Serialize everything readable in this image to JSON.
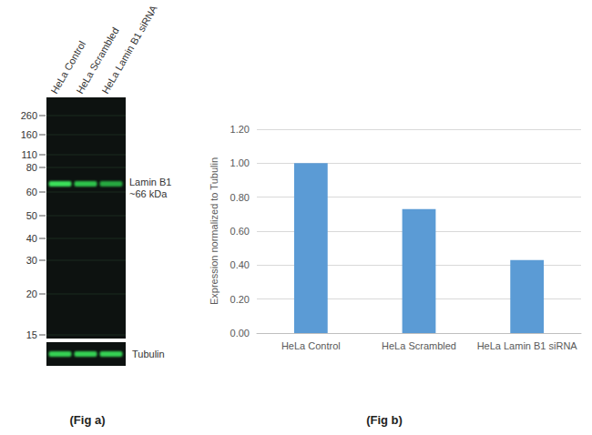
{
  "blot": {
    "caption": "(Fig a)",
    "lanes": [
      "HeLa Control",
      "HeLa Scrambled",
      "HeLa Lamin B1 siRNA"
    ],
    "markers": [
      260,
      160,
      110,
      80,
      60,
      50,
      40,
      30,
      20,
      15
    ],
    "bands": [
      {
        "label": "Lamin B1",
        "size": 66,
        "size_label": "~66 kDa"
      },
      {
        "label": "Tubulin"
      }
    ]
  },
  "chart_data": {
    "type": "bar",
    "caption": "(Fig b)",
    "y_label": "Expression normalized to Tubulin",
    "categories": [
      "HeLa Control",
      "HeLa Scrambled",
      "HeLa Lamin B1 siRNA"
    ],
    "values": [
      1.0,
      0.73,
      0.43
    ],
    "color": "#5b9bd5",
    "ylim": [
      0,
      1.2
    ],
    "yticks": [
      {
        "value": 0,
        "label": "0.00"
      },
      {
        "value": 0.2,
        "label": "0.20"
      },
      {
        "value": 0.4,
        "label": "0.40"
      },
      {
        "value": 0.6,
        "label": "0.60"
      },
      {
        "value": 0.8,
        "label": "0.80"
      },
      {
        "value": 1.0,
        "label": "1.00"
      },
      {
        "value": 1.2,
        "label": "1.20"
      }
    ],
    "grid": true
  }
}
